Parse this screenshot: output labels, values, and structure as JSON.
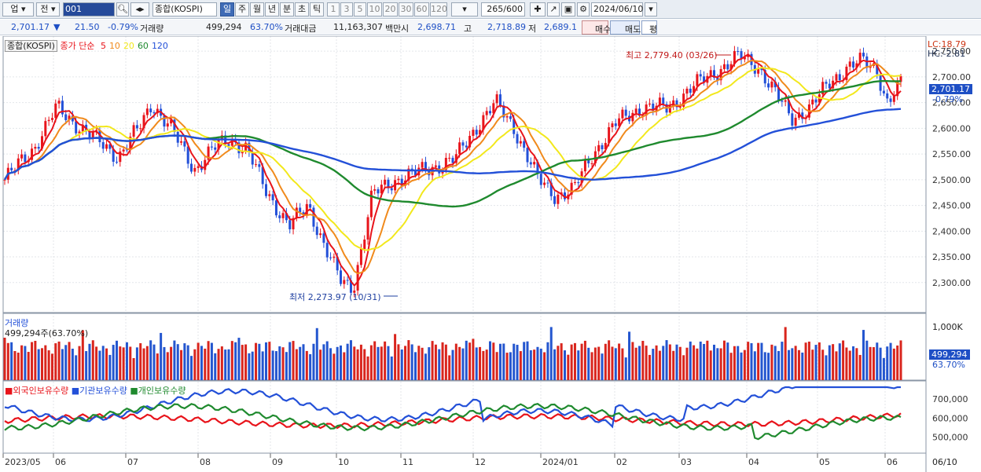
{
  "toolbar": {
    "market_select": "업",
    "prev_label": "전",
    "code_value": "001",
    "name_value": "종합(KOSPI)",
    "period_tabs": [
      "일",
      "주",
      "월",
      "년",
      "분",
      "초",
      "틱"
    ],
    "active_period": "일",
    "interval_tabs": [
      "1",
      "3",
      "5",
      "10",
      "20",
      "30",
      "60",
      "120"
    ],
    "count_value": "265/600",
    "date_value": "2024/06/10",
    "icons": [
      "search-icon",
      "zoom-icon",
      "speaker-icon",
      "crosshair-icon",
      "line-draw-icon",
      "save-icon",
      "gear-icon"
    ]
  },
  "infobar": {
    "price": "2,701.17",
    "arrow": "▼",
    "change": "21.50",
    "change_pct": "-0.79%",
    "volume_label": "거래량",
    "volume": "499,294",
    "volume_pct": "63.70%",
    "amount_label": "거래대금",
    "amount": "11,163,307",
    "amount_unit": "백만",
    "open_label": "시",
    "open": "2,698.71",
    "high_label": "고",
    "high": "2,718.89",
    "low_label": "저",
    "low": "2,689.1",
    "buy_label": "매수",
    "sell_label": "매도",
    "avg_label": "평"
  },
  "price_panel": {
    "legend_name": "종합(KOSPI)",
    "legend_ma_label": "종가 단순",
    "ma_periods": [
      "5",
      "10",
      "20",
      "60",
      "120"
    ],
    "ma_colors": [
      "#e8141b",
      "#f08a1c",
      "#f2e81c",
      "#1f8a2e",
      "#2350d8"
    ],
    "lc_label": "LC:18.79",
    "hc_label": "HC:-2.81",
    "current_price": "2,701.17",
    "current_pct": "-0.79%",
    "high_annotation": "최고 2,779.40 (03/26)",
    "low_annotation": "최저 2,273.97 (10/31)",
    "y_ticks": [
      "2,750.00",
      "2,700.00",
      "2,650.00",
      "2,600.00",
      "2,550.00",
      "2,500.00",
      "2,450.00",
      "2,400.00",
      "2,350.00",
      "2,300.00"
    ]
  },
  "volume_panel": {
    "title": "거래량",
    "value_label": "499,294주(63.70%)",
    "y_tick": "1,000K",
    "current": "499,294",
    "current_pct": "63.70%"
  },
  "investor_panel": {
    "series": [
      "외국인보유수량",
      "기관보유수량",
      "개인보유수량"
    ],
    "series_colors": [
      "#e8141b",
      "#2350d8",
      "#1f8a2e"
    ],
    "y_ticks": [
      "700,000",
      "600,000",
      "500,000"
    ]
  },
  "x_axis": {
    "labels": [
      "2023/05",
      "06",
      "07",
      "08",
      "09",
      "10",
      "11",
      "12",
      "2024/01",
      "02",
      "03",
      "04",
      "05",
      "06"
    ],
    "corner_label": "06/10"
  }
}
